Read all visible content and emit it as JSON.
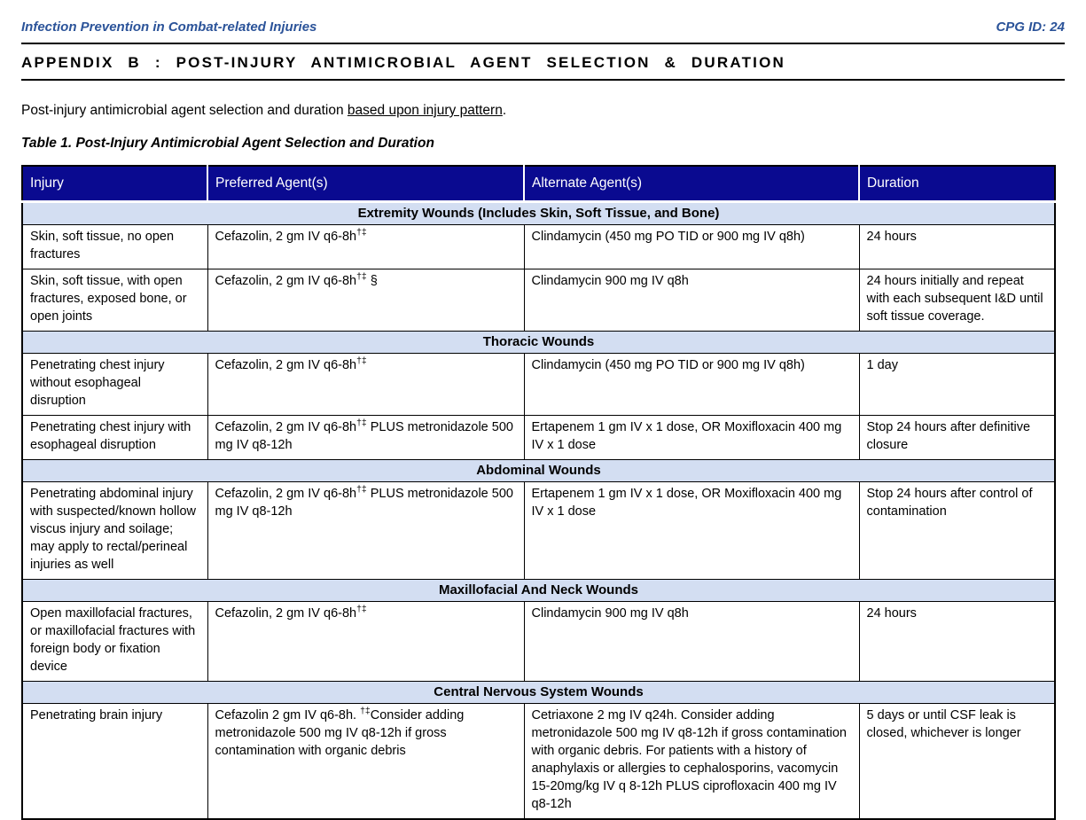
{
  "colors": {
    "blue_text": "#2B5399",
    "header_navy": "#0A0A90",
    "section_band": "#D3DEF2",
    "border_black": "#000000"
  },
  "page_header": {
    "left": "Infection Prevention in Combat-related Injuries",
    "right": "CPG ID: 24"
  },
  "appendix_title": "APPENDIX B : POST-INJURY ANTIMICROBIAL AGENT SELECTION & DURATION",
  "intro": [
    {
      "t": "Post-injury antimicrobial agent selection and duration "
    },
    {
      "t": "based upon injury pattern",
      "u": true
    },
    {
      "t": "."
    }
  ],
  "table_caption": "Table 1. Post-Injury Antimicrobial Agent Selection and Duration",
  "table": {
    "columns": [
      "Injury",
      "Preferred Agent(s)",
      "Alternate Agent(s)",
      "Duration"
    ],
    "sections": [
      {
        "title": "Extremity Wounds (Includes Skin, Soft Tissue, and Bone)",
        "rows": [
          [
            "Skin, soft tissue, no open fractures",
            [
              {
                "t": "Cefazolin, 2 gm IV q6-8h"
              },
              {
                "t": "†‡",
                "sup": true
              }
            ],
            "Clindamycin (450 mg PO TID or 900 mg IV q8h)",
            "24 hours"
          ],
          [
            "Skin, soft tissue, with open fractures, exposed bone, or open joints",
            [
              {
                "t": "Cefazolin, 2 gm IV q6-8h"
              },
              {
                "t": "†‡",
                "sup": true
              },
              {
                "t": " §"
              }
            ],
            "Clindamycin 900 mg IV q8h",
            "24 hours initially and repeat with each subsequent I&D until soft tissue coverage."
          ]
        ]
      },
      {
        "title": "Thoracic Wounds",
        "rows": [
          [
            "Penetrating chest injury without esophageal disruption",
            [
              {
                "t": "Cefazolin, 2 gm IV q6-8h"
              },
              {
                "t": "†‡",
                "sup": true
              }
            ],
            "Clindamycin (450 mg PO TID or 900 mg IV q8h)",
            "1 day"
          ],
          [
            "Penetrating chest injury with esophageal disruption",
            [
              {
                "t": "Cefazolin, 2 gm IV q6-8h"
              },
              {
                "t": "†‡",
                "sup": true
              },
              {
                "t": " PLUS metronidazole 500 mg IV q8-12h"
              }
            ],
            "Ertapenem 1 gm IV x 1 dose, OR Moxifloxacin 400 mg IV x 1 dose",
            "Stop 24 hours after definitive closure"
          ]
        ]
      },
      {
        "title": "Abdominal Wounds",
        "rows": [
          [
            "Penetrating abdominal injury with suspected/known hollow viscus injury and soilage; may apply to rectal/perineal injuries as well",
            [
              {
                "t": "Cefazolin, 2 gm IV q6-8h"
              },
              {
                "t": "†‡",
                "sup": true
              },
              {
                "t": " PLUS metronidazole 500 mg IV q8-12h"
              }
            ],
            "Ertapenem 1 gm IV x 1 dose, OR Moxifloxacin 400 mg IV x 1 dose",
            "Stop 24 hours after control of contamination"
          ]
        ]
      },
      {
        "title": "Maxillofacial And Neck Wounds",
        "rows": [
          [
            "Open maxillofacial fractures, or maxillofacial fractures with foreign body or fixation device",
            [
              {
                "t": "Cefazolin, 2 gm IV q6-8h"
              },
              {
                "t": "†‡",
                "sup": true
              }
            ],
            "Clindamycin 900 mg IV q8h",
            "24 hours"
          ]
        ]
      },
      {
        "title": "Central Nervous System Wounds",
        "rows": [
          [
            "Penetrating brain injury",
            [
              {
                "t": "Cefazolin 2 gm IV q6-8h. "
              },
              {
                "t": "†‡",
                "sup": true
              },
              {
                "t": "Consider adding metronidazole 500 mg IV q8-12h if gross contamination with organic debris"
              }
            ],
            "Cetriaxone 2 mg IV q24h. Consider adding metronidazole 500 mg IV q8-12h if gross contamination with organic debris. For patients with a history of anaphylaxis or allergies to cephalosporins, vacomycin 15-20mg/kg IV q 8-12h PLUS ciprofloxacin 400 mg IV q8-12h",
            "5 days or until CSF leak is closed, whichever is longer"
          ]
        ]
      }
    ]
  }
}
